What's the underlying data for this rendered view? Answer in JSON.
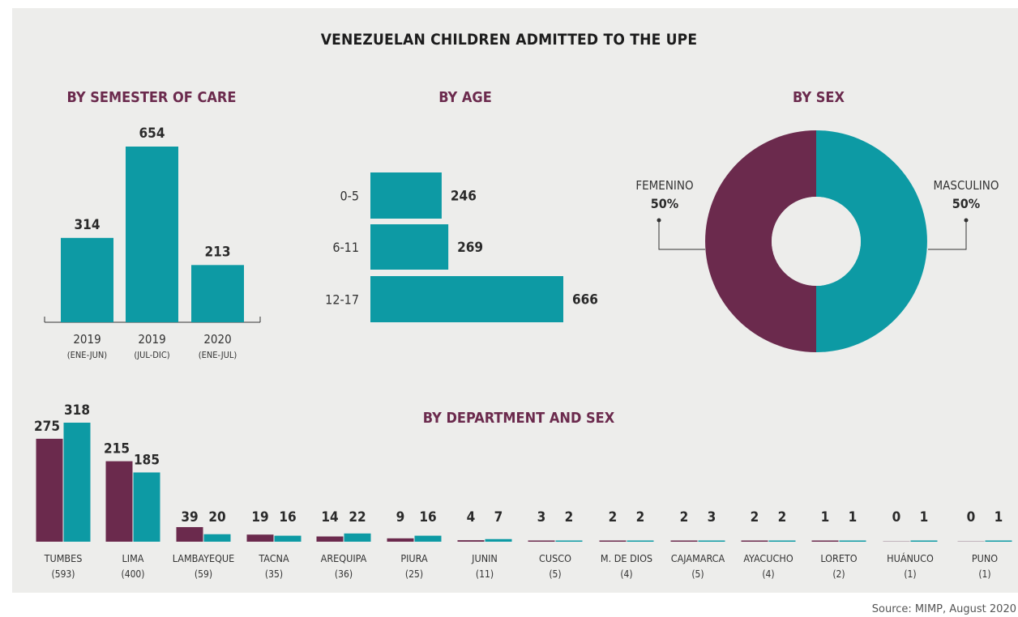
{
  "title": "VENEZUELAN CHILDREN ADMITTED TO THE UPE",
  "source": "Source: MIMP, August 2020",
  "colors": {
    "masculino": "#0d9aa4",
    "femenino": "#6b2a4d",
    "background": "#ededeb"
  },
  "chart_data": [
    {
      "type": "bar",
      "title": "BY SEMESTER OF CARE",
      "categories": [
        [
          "2019",
          "(ENE-JUN)"
        ],
        [
          "2019",
          "(JUL-DIC)"
        ],
        [
          "2020",
          "(ENE-JUL)"
        ]
      ],
      "values": [
        314,
        654,
        213
      ],
      "ylim": [
        0,
        654
      ]
    },
    {
      "type": "bar",
      "orientation": "horizontal",
      "title": "BY AGE",
      "categories": [
        "0-5",
        "6-11",
        "12-17"
      ],
      "values": [
        246,
        269,
        666
      ]
    },
    {
      "type": "pie",
      "donut": true,
      "title": "BY SEX",
      "slices": [
        {
          "name": "FEMENINO",
          "value": 50,
          "label": "50%"
        },
        {
          "name": "MASCULINO",
          "value": 50,
          "label": "50%"
        }
      ]
    },
    {
      "type": "bar",
      "title": "BY DEPARTMENT AND SEX",
      "categories": [
        "TUMBES",
        "LIMA",
        "LAMBAYEQUE",
        "TACNA",
        "AREQUIPA",
        "PIURA",
        "JUNIN",
        "CUSCO",
        "M. DE DIOS",
        "CAJAMARCA",
        "AYACUCHO",
        "LORETO",
        "HUÁNUCO",
        "PUNO"
      ],
      "totals": [
        "(593)",
        "(400)",
        "(59)",
        "(35)",
        "(36)",
        "(25)",
        "(11)",
        "(5)",
        "(4)",
        "(5)",
        "(4)",
        "(2)",
        "(1)",
        "(1)"
      ],
      "series": [
        {
          "values": [
            275,
            215,
            39,
            19,
            14,
            9,
            4,
            3,
            2,
            2,
            2,
            1,
            0,
            0
          ]
        },
        {
          "values": [
            318,
            185,
            20,
            16,
            22,
            16,
            7,
            2,
            2,
            3,
            2,
            1,
            1,
            1
          ]
        }
      ]
    }
  ]
}
